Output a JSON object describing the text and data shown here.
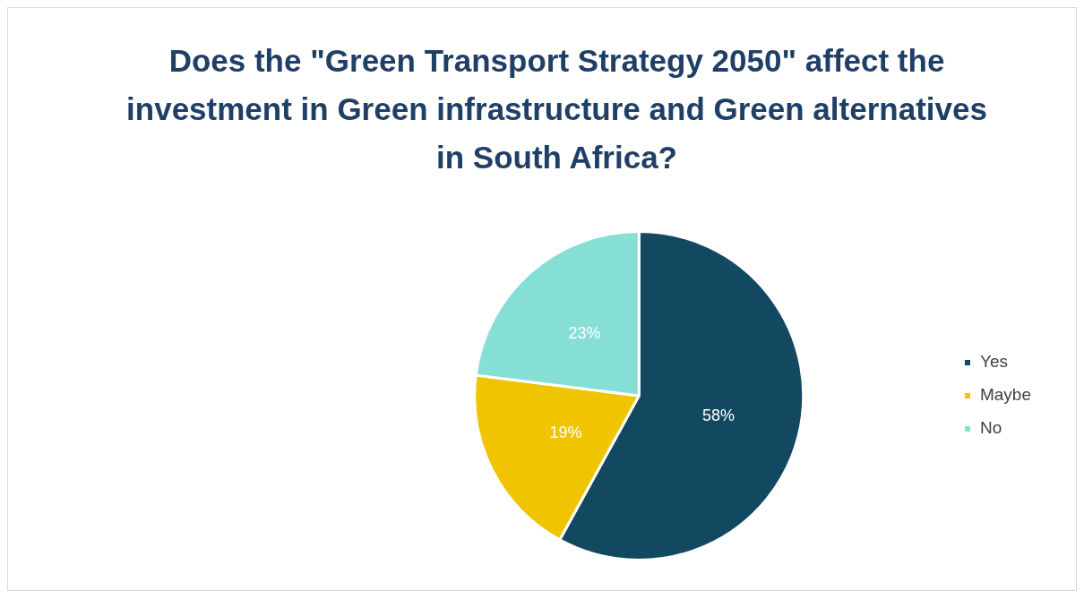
{
  "chart_data": {
    "type": "pie",
    "title": "Does the \"Green Transport Strategy 2050\" affect the investment in Green infrastructure and Green alternatives in South Africa?",
    "categories": [
      "Yes",
      "Maybe",
      "No"
    ],
    "values": [
      58,
      19,
      23
    ],
    "colors": [
      "#134861",
      "#f0c400",
      "#86dfd4"
    ],
    "value_labels": [
      "58%",
      "19%",
      "23%"
    ],
    "legend": "right"
  }
}
